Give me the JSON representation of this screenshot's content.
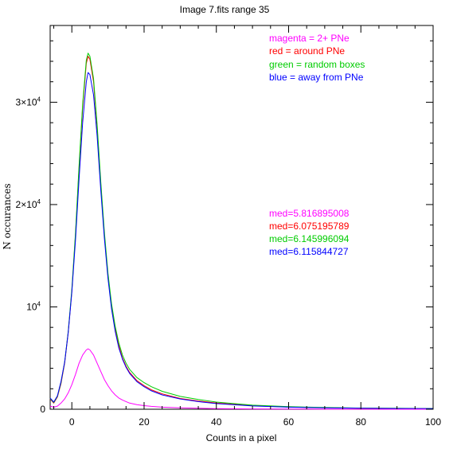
{
  "chart_data": {
    "type": "line",
    "title": "Image 7.fits   range 35",
    "xlabel": "Counts in a pixel",
    "ylabel": "N occurances",
    "xlim": [
      -6,
      100
    ],
    "ylim": [
      0,
      37500
    ],
    "x_ticks": [
      {
        "value": 0,
        "label": "0"
      },
      {
        "value": 20,
        "label": "20"
      },
      {
        "value": 40,
        "label": "40"
      },
      {
        "value": 60,
        "label": "60"
      },
      {
        "value": 80,
        "label": "80"
      },
      {
        "value": 100,
        "label": "100"
      }
    ],
    "y_ticks": [
      {
        "value": 0,
        "base": "0",
        "exp": ""
      },
      {
        "value": 10000,
        "base": "10",
        "exp": "4"
      },
      {
        "value": 20000,
        "base": "2×10",
        "exp": "4"
      },
      {
        "value": 30000,
        "base": "3×10",
        "exp": "4"
      }
    ],
    "legend": [
      {
        "text": "magenta = 2+ PNe",
        "color": "#ff00ff"
      },
      {
        "text": "red = around PNe",
        "color": "#ff0000"
      },
      {
        "text": "green = random boxes",
        "color": "#00cc00"
      },
      {
        "text": "blue = away from PNe",
        "color": "#0000ff"
      }
    ],
    "medians": [
      {
        "text": "med=5.816895008",
        "color": "#ff00ff"
      },
      {
        "text": "med=6.075195789",
        "color": "#ff0000"
      },
      {
        "text": "med=6.145996094",
        "color": "#00cc00"
      },
      {
        "text": "med=6.115844727",
        "color": "#0000ff"
      }
    ],
    "grid": false,
    "series": [
      {
        "color": "#ff0000",
        "x": [
          -6,
          -5,
          -4,
          -3,
          -2,
          -1,
          0,
          1,
          2,
          3,
          4,
          4.5,
          5,
          6,
          7,
          8,
          9,
          10,
          11,
          12,
          13,
          14,
          15,
          16,
          18,
          20,
          22,
          25,
          30,
          35,
          40,
          50,
          60,
          70,
          80,
          90,
          100
        ],
        "y": [
          1000,
          600,
          1200,
          2500,
          4500,
          7500,
          11500,
          17000,
          23500,
          29500,
          33800,
          34500,
          34200,
          32000,
          27500,
          22000,
          17000,
          13000,
          10000,
          7800,
          6200,
          5000,
          4200,
          3600,
          2800,
          2300,
          1900,
          1500,
          1050,
          800,
          600,
          350,
          220,
          150,
          100,
          80,
          60
        ]
      },
      {
        "color": "#00cc00",
        "x": [
          -6,
          -5,
          -4,
          -3,
          -2,
          -1,
          0,
          1,
          2,
          3,
          4,
          4.5,
          5,
          6,
          7,
          8,
          9,
          10,
          11,
          12,
          13,
          14,
          15,
          16,
          18,
          20,
          22,
          25,
          30,
          35,
          40,
          50,
          60,
          70,
          80,
          90,
          100
        ],
        "y": [
          1050,
          650,
          1250,
          2600,
          4600,
          7600,
          11700,
          17200,
          23800,
          29800,
          34100,
          34800,
          34500,
          32300,
          27800,
          22300,
          17300,
          13300,
          10300,
          8100,
          6500,
          5300,
          4500,
          3900,
          3100,
          2600,
          2200,
          1750,
          1250,
          950,
          700,
          400,
          250,
          170,
          110,
          90,
          70
        ]
      },
      {
        "color": "#0000ff",
        "x": [
          -6,
          -5,
          -4,
          -3,
          -2,
          -1,
          0,
          1,
          2,
          3,
          4,
          4.5,
          5,
          6,
          7,
          8,
          9,
          10,
          11,
          12,
          13,
          14,
          15,
          16,
          18,
          20,
          22,
          25,
          30,
          35,
          40,
          50,
          60,
          70,
          80,
          90,
          100
        ],
        "y": [
          1100,
          700,
          1300,
          2700,
          4600,
          7500,
          11400,
          16500,
          22500,
          28000,
          32000,
          32900,
          32700,
          30700,
          26700,
          21500,
          16700,
          12800,
          9800,
          7600,
          6000,
          4900,
          4100,
          3500,
          2700,
          2200,
          1800,
          1400,
          1000,
          750,
          550,
          320,
          200,
          140,
          90,
          70,
          55
        ]
      },
      {
        "color": "#ff00ff",
        "x": [
          -6,
          -5,
          -4,
          -3,
          -2,
          -1,
          0,
          1,
          2,
          3,
          4,
          4.5,
          5,
          6,
          7,
          8,
          9,
          10,
          11,
          12,
          13,
          14,
          15,
          16,
          18,
          20,
          22,
          25,
          30,
          35,
          40,
          50,
          60,
          70,
          80,
          90,
          100
        ],
        "y": [
          300,
          200,
          300,
          600,
          1000,
          1600,
          2400,
          3400,
          4500,
          5300,
          5800,
          5900,
          5800,
          5300,
          4500,
          3700,
          2900,
          2300,
          1800,
          1400,
          1100,
          900,
          750,
          600,
          450,
          350,
          280,
          200,
          130,
          90,
          60,
          30,
          20,
          10,
          5,
          0,
          0
        ]
      }
    ]
  }
}
